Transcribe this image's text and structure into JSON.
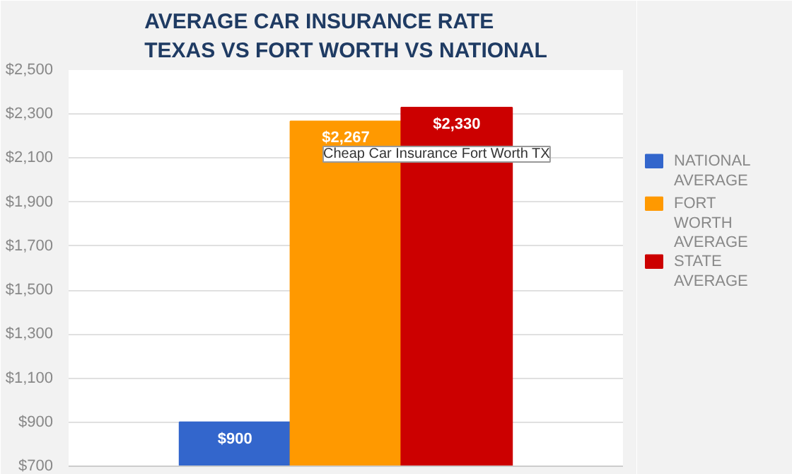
{
  "chart_data": {
    "type": "bar",
    "title": "AVERAGE CAR INSURANCE RATE\nTEXAS VS FORT WORTH VS NATIONAL",
    "categories": [
      null
    ],
    "series": [
      {
        "name": "NATIONAL AVERAGE",
        "color": "#3366cc",
        "values": [
          900
        ],
        "value_labels": [
          "$900"
        ]
      },
      {
        "name": "FORT WORTH AVERAGE",
        "color": "#ff9900",
        "values": [
          2267
        ],
        "value_labels": [
          "$2,267"
        ]
      },
      {
        "name": "STATE AVERAGE",
        "color": "#cc0000",
        "values": [
          2330
        ],
        "value_labels": [
          "$2,330"
        ]
      }
    ],
    "ylim": [
      700,
      2500
    ],
    "yticks": [
      {
        "value": 700,
        "label": "$700"
      },
      {
        "value": 900,
        "label": "$900"
      },
      {
        "value": 1100,
        "label": "$1,100"
      },
      {
        "value": 1300,
        "label": "$1,300"
      },
      {
        "value": 1500,
        "label": "$1,500"
      },
      {
        "value": 1700,
        "label": "$1,700"
      },
      {
        "value": 1900,
        "label": "$1,900"
      },
      {
        "value": 2100,
        "label": "$2,100"
      },
      {
        "value": 2300,
        "label": "$2,300"
      },
      {
        "value": 2500,
        "label": "$2,500"
      }
    ],
    "grid": "y",
    "legend": "right",
    "annotations": [
      "Cheap Car Insurance Fort Worth TX"
    ]
  }
}
